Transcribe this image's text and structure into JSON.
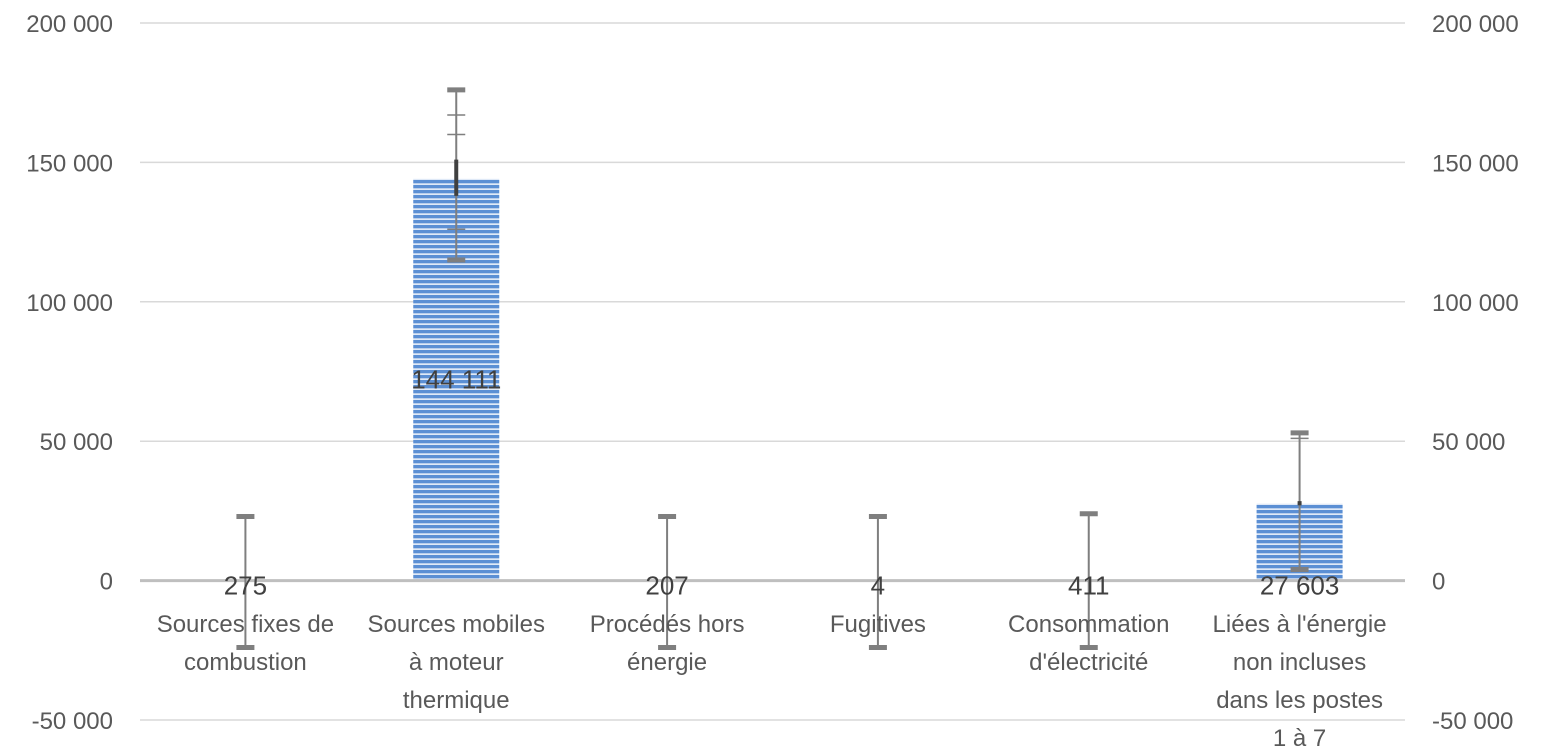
{
  "chart_data": {
    "type": "bar",
    "categories": [
      [
        "Sources fixes de",
        "combustion"
      ],
      [
        "Sources mobiles",
        "à moteur",
        "thermique"
      ],
      [
        "Procédés hors",
        "énergie"
      ],
      [
        "Fugitives"
      ],
      [
        "Consommation",
        "d'électricité"
      ],
      [
        "Liées à l'énergie",
        "non incluses",
        "dans les postes",
        "1 à 7"
      ]
    ],
    "values": [
      275,
      144111,
      207,
      4,
      411,
      27603
    ],
    "data_labels": [
      "275",
      "144 111",
      "207",
      "4",
      "411",
      "27 603"
    ],
    "error_bars": [
      {
        "low": -24000,
        "high": 23000
      },
      {
        "low": 115000,
        "high": 176000,
        "inner": [
          138000,
          151000
        ],
        "extra_ticks": [
          126000,
          160000,
          167000
        ]
      },
      {
        "low": -24000,
        "high": 23000
      },
      {
        "low": -24000,
        "high": 23000
      },
      {
        "low": -24000,
        "high": 24000
      },
      {
        "low": 4000,
        "high": 53000,
        "inner": [
          27000,
          28500
        ],
        "extra_ticks": [
          51000
        ]
      }
    ],
    "ylim": [
      -50000,
      200000
    ],
    "y_ticks": [
      200000,
      150000,
      100000,
      50000,
      0,
      -50000
    ],
    "y_tick_labels": [
      "200 000",
      "150 000",
      "100 000",
      "50 000",
      "0",
      "-50 000"
    ],
    "secondary_axis": true,
    "grid": true,
    "legend": "none",
    "bar_color": "#5b8fd4",
    "bar_stripe_color": "#ffffff",
    "title": "",
    "xlabel": "",
    "ylabel": ""
  }
}
